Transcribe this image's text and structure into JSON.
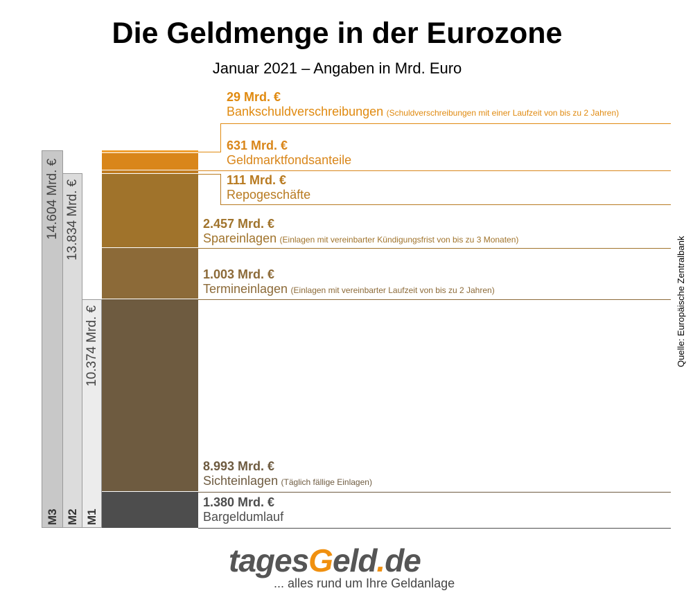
{
  "title": "Die Geldmenge in der Eurozone",
  "subtitle": "Januar 2021 – Angaben in Mrd. Euro",
  "source": "Quelle: Europäische Zentralbank",
  "logo": {
    "part1": "tages",
    "part2": "G",
    "part3": "eld",
    "part4": ".",
    "part5": "de",
    "slogan": "... alles rund um Ihre Geldanlage"
  },
  "aggregates": [
    {
      "name": "M3",
      "total": "14.604 Mrd. €"
    },
    {
      "name": "M2",
      "total": "13.834 Mrd. €"
    },
    {
      "name": "M1",
      "total": "10.374 Mrd. €"
    }
  ],
  "chart_data": {
    "type": "bar",
    "title": "Die Geldmenge in der Eurozone",
    "subtitle": "Januar 2021 – Angaben in Mrd. Euro",
    "stacked": true,
    "categories": [
      "Bankschuldverschreibungen",
      "Geldmarktfondsanteile",
      "Repogeschäfte",
      "Spareinlagen",
      "Termineinlagen",
      "Sichteinlagen",
      "Bargeldumlauf"
    ],
    "values": [
      29,
      631,
      111,
      2457,
      1003,
      8993,
      1380
    ],
    "segments": [
      {
        "value": "29 Mrd. €",
        "name": "Bankschuldverschreibungen",
        "desc": "(Schuldverschreibungen mit einer Laufzeit von bis zu 2 Jahren)",
        "color": "#f0a030",
        "text": "#e08a10"
      },
      {
        "value": "631 Mrd. €",
        "name": "Geldmarktfondsanteile",
        "desc": "",
        "color": "#d9861a",
        "text": "#d9861a"
      },
      {
        "value": "111 Mrd. €",
        "name": "Repogeschäfte",
        "desc": "",
        "color": "#c07c22",
        "text": "#b87a20"
      },
      {
        "value": "2.457 Mrd. €",
        "name": "Spareinlagen",
        "desc": "(Einlagen mit vereinbarter Kündigungsfrist von bis zu 3 Monaten)",
        "color": "#a0732b",
        "text": "#a0732b"
      },
      {
        "value": "1.003 Mrd. €",
        "name": "Termineinlagen",
        "desc": "(Einlagen mit vereinbarter Laufzeit von bis zu 2 Jahren)",
        "color": "#8c6a38",
        "text": "#8c6a38"
      },
      {
        "value": "8.993 Mrd. €",
        "name": "Sichteinlagen",
        "desc": "(Täglich fällige Einlagen)",
        "color": "#6e5b40",
        "text": "#6e5b40"
      },
      {
        "value": "1.380 Mrd. €",
        "name": "Bargeldumlauf",
        "desc": "",
        "color": "#4d4d4d",
        "text": "#4d4d4d"
      }
    ]
  }
}
